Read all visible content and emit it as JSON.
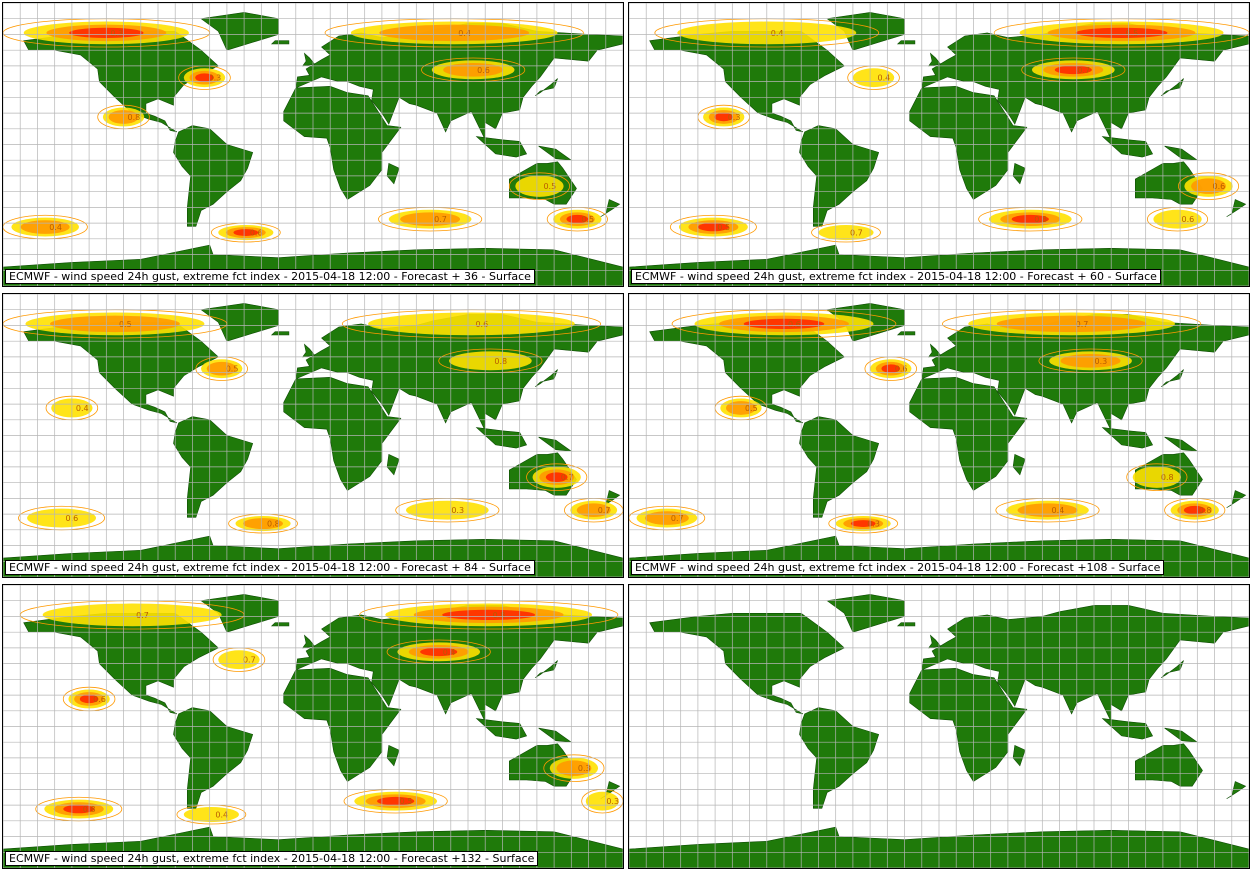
{
  "colors": {
    "land": "#1f7a0a",
    "land_edge": "#0f4d05",
    "grid": "#b5b5b5",
    "contour": "#ff9900",
    "fill_low": "#ffe100",
    "fill_mid": "#ff9900",
    "fill_high": "#ff2a00",
    "fill_peak": "#cc0000"
  },
  "panels": [
    {
      "id": "p36",
      "caption": "ECMWF - wind speed 24h gust, extreme fct index - 2015-04-18 12:00 - Forecast + 36 - Surface"
    },
    {
      "id": "p60",
      "caption": "ECMWF - wind speed 24h gust, extreme fct index - 2015-04-18 12:00 - Forecast + 60 - Surface"
    },
    {
      "id": "p84",
      "caption": "ECMWF - wind speed 24h gust, extreme fct index - 2015-04-18 12:00 - Forecast + 84 - Surface"
    },
    {
      "id": "p108",
      "caption": "ECMWF - wind speed 24h gust, extreme fct index - 2015-04-18 12:00 - Forecast +108 - Surface"
    },
    {
      "id": "p132",
      "caption": "ECMWF - wind speed 24h gust, extreme fct index - 2015-04-18 12:00 - Forecast +132 - Surface"
    },
    {
      "id": "pblank",
      "caption": ""
    }
  ],
  "contour_labels": [
    "0.3",
    "0.4",
    "0.5",
    "0.6",
    "0.7",
    "0.8"
  ],
  "overlays": [
    {
      "lon": [
        -170,
        -40
      ],
      "lat": [
        62,
        80
      ],
      "lvl": 2
    },
    {
      "lon": [
        20,
        170
      ],
      "lat": [
        62,
        80
      ],
      "lvl": 1
    },
    {
      "lon": [
        120,
        155
      ],
      "lat": [
        -35,
        -18
      ],
      "lvl": 3
    },
    {
      "lon": [
        -60,
        -20
      ],
      "lat": [
        -62,
        -50
      ],
      "lvl": 2
    },
    {
      "lon": [
        30,
        90
      ],
      "lat": [
        -55,
        -40
      ],
      "lvl": 1
    },
    {
      "lon": [
        -140,
        -110
      ],
      "lat": [
        10,
        25
      ],
      "lvl": 1
    },
    {
      "lon": [
        -60,
        -30
      ],
      "lat": [
        35,
        50
      ],
      "lvl": 2
    },
    {
      "lon": [
        -170,
        -120
      ],
      "lat": [
        -60,
        -45
      ],
      "lvl": 1
    },
    {
      "lon": [
        140,
        175
      ],
      "lat": [
        -55,
        -40
      ],
      "lvl": 2
    },
    {
      "lon": [
        60,
        120
      ],
      "lat": [
        40,
        55
      ],
      "lvl": 1
    }
  ]
}
